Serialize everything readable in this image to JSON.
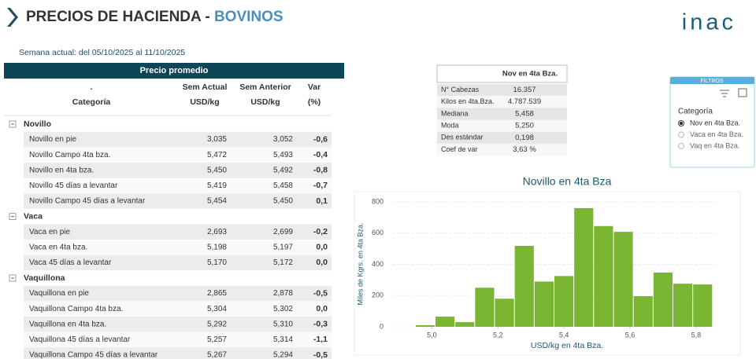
{
  "header": {
    "title": "PRECIOS DE HACIENDA - ",
    "title_accent": "BOVINOS",
    "logo": "inac",
    "week": "Semana actual: del 05/10/2025 al 11/10/2025"
  },
  "table": {
    "title": "Precio promedio",
    "columns": [
      [
        ".",
        "Categoría"
      ],
      [
        "Sem Actual",
        "USD/kg"
      ],
      [
        "Sem Anterior",
        "USD/kg"
      ],
      [
        "Var",
        "(%)"
      ]
    ],
    "groups": [
      {
        "name": "Novillo",
        "rows": [
          [
            "Novillo en pie",
            "3,035",
            "3,052",
            "-0,6"
          ],
          [
            "Novillo Campo 4ta bza.",
            "5,472",
            "5,493",
            "-0,4"
          ],
          [
            "Novillo en 4ta bza.",
            "5,450",
            "5,492",
            "-0,8"
          ],
          [
            "Novillo 45 días a levantar",
            "5,419",
            "5,458",
            "-0,7"
          ],
          [
            "Novillo Campo 45 días a levantar",
            "5,454",
            "5,450",
            "0,1"
          ]
        ]
      },
      {
        "name": "Vaca",
        "rows": [
          [
            "Vaca en pie",
            "2,693",
            "2,699",
            "-0,2"
          ],
          [
            "Vaca en 4ta bza.",
            "5,198",
            "5,197",
            "0,0"
          ],
          [
            "Vaca 45 días a levantar",
            "5,170",
            "5,172",
            "0,0"
          ]
        ]
      },
      {
        "name": "Vaquillona",
        "rows": [
          [
            "Vaquillona en pie",
            "2,865",
            "2,878",
            "-0,5"
          ],
          [
            "Vaquillona Campo 4ta bza.",
            "5,304",
            "5,302",
            "0,0"
          ],
          [
            "Vaquillona en 4ta bza.",
            "5,292",
            "5,310",
            "-0,3"
          ],
          [
            "Vaquillona 45 días a levantar",
            "5,257",
            "5,314",
            "-1,1"
          ],
          [
            "Vaquillona Campo 45 días a levantar",
            "5,267",
            "5,294",
            "-0,5"
          ]
        ]
      }
    ]
  },
  "stats": {
    "header": "Nov en 4ta Bza.",
    "rows": [
      [
        "N° Cabezas",
        "16.357"
      ],
      [
        "Kilos en 4ta.Bza.",
        "4.787.539"
      ],
      [
        "Mediana",
        "5,458"
      ],
      [
        "Moda",
        "5,250"
      ],
      [
        "Des estándar",
        "0,198"
      ],
      [
        "Coef de var",
        "3,63 %"
      ]
    ]
  },
  "filters": {
    "title": "FILTROS",
    "label": "Categoría",
    "options": [
      "Nov en 4ta Bza.",
      "Vaca en 4ta Bza.",
      "Vaq en 4ta Bza."
    ],
    "selected": 0
  },
  "chart_data": {
    "type": "histogram",
    "title": "Novillo en 4ta Bza",
    "x_label": "USD/kg en 4ta Bza.",
    "y_label": "Miles de Kgrs. en 4ta Bza.",
    "bins": [
      4.95,
      5.01,
      5.07,
      5.13,
      5.19,
      5.25,
      5.31,
      5.37,
      5.43,
      5.49,
      5.55,
      5.61,
      5.67,
      5.73,
      5.79,
      5.85
    ],
    "values": [
      10,
      65,
      30,
      250,
      180,
      518,
      290,
      325,
      760,
      645,
      608,
      196,
      347,
      276,
      271
    ],
    "color": "#7ab631",
    "xlim": [
      4.88,
      5.86
    ],
    "ylim": [
      0,
      850
    ],
    "xticks": [
      {
        "value": 5.0,
        "label": "5,0"
      },
      {
        "value": 5.2,
        "label": "5,2"
      },
      {
        "value": 5.4,
        "label": "5,4"
      },
      {
        "value": 5.6,
        "label": "5,6"
      },
      {
        "value": 5.8,
        "label": "5,8"
      }
    ],
    "yticks": [
      0,
      200,
      400,
      600,
      800
    ],
    "grid": true
  }
}
